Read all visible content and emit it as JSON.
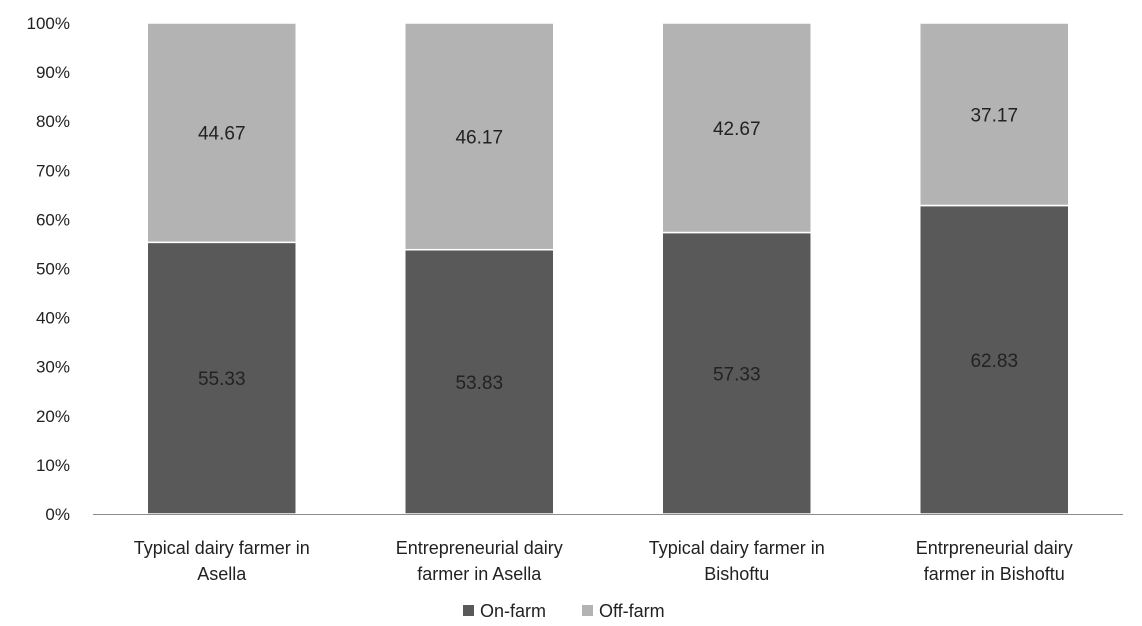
{
  "chart_data": {
    "type": "bar",
    "stacked": true,
    "percent": true,
    "categories": [
      [
        "Typical dairy farmer in",
        "Asella"
      ],
      [
        "Entrepreneurial dairy",
        "farmer in Asella"
      ],
      [
        "Typical dairy farmer in",
        "Bishoftu"
      ],
      [
        "Entrpreneurial dairy",
        "farmer in Bishoftu"
      ]
    ],
    "series": [
      {
        "name": "On-farm",
        "color": "#595959",
        "values": [
          55.33,
          53.83,
          57.33,
          62.83
        ]
      },
      {
        "name": "Off-farm",
        "color": "#b3b3b3",
        "values": [
          44.67,
          46.17,
          42.67,
          37.17
        ]
      }
    ],
    "value_labels": [
      [
        "55.33",
        "53.83",
        "57.33",
        "62.83"
      ],
      [
        "44.67",
        "46.17",
        "42.67",
        "37.17"
      ]
    ],
    "y_ticks": [
      "0%",
      "10%",
      "20%",
      "30%",
      "40%",
      "50%",
      "60%",
      "70%",
      "80%",
      "90%",
      "100%"
    ],
    "ylim": [
      0,
      100
    ],
    "title": "",
    "xlabel": "",
    "ylabel": "",
    "grid": false,
    "legend_position": "bottom"
  }
}
